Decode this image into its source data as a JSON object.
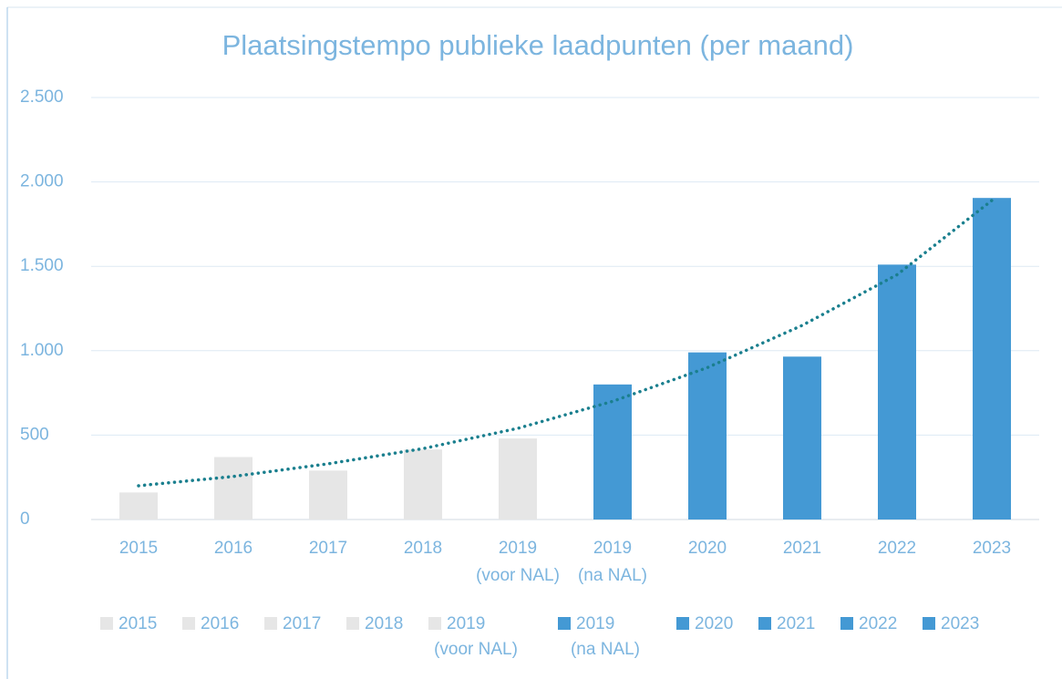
{
  "chart_data": {
    "type": "bar",
    "title": "Plaatsingstempo publieke laadpunten (per maand)",
    "categories": [
      [
        "2015"
      ],
      [
        "2016"
      ],
      [
        "2017"
      ],
      [
        "2018"
      ],
      [
        "2019",
        "(voor NAL)"
      ],
      [
        "2019",
        "(na NAL)"
      ],
      [
        "2020"
      ],
      [
        "2021"
      ],
      [
        "2022"
      ],
      [
        "2023"
      ]
    ],
    "values": [
      160,
      370,
      290,
      415,
      480,
      800,
      990,
      965,
      1510,
      1905
    ],
    "colors": [
      "#e6e6e6",
      "#e6e6e6",
      "#e6e6e6",
      "#e6e6e6",
      "#e6e6e6",
      "#4499d4",
      "#4499d4",
      "#4499d4",
      "#4499d4",
      "#4499d4"
    ],
    "trendline": {
      "color": "#1a7f8e",
      "values": [
        200,
        255,
        330,
        420,
        540,
        700,
        900,
        1150,
        1450,
        1890
      ]
    },
    "ylim": [
      0,
      2500
    ],
    "yticks": [
      0,
      500,
      {
        "value": 1000,
        "label": "1.000"
      },
      {
        "value": 1500,
        "label": "1.500"
      },
      {
        "value": 2000,
        "label": "2.000"
      },
      {
        "value": 2500,
        "label": "2.500"
      }
    ],
    "grid": true
  }
}
